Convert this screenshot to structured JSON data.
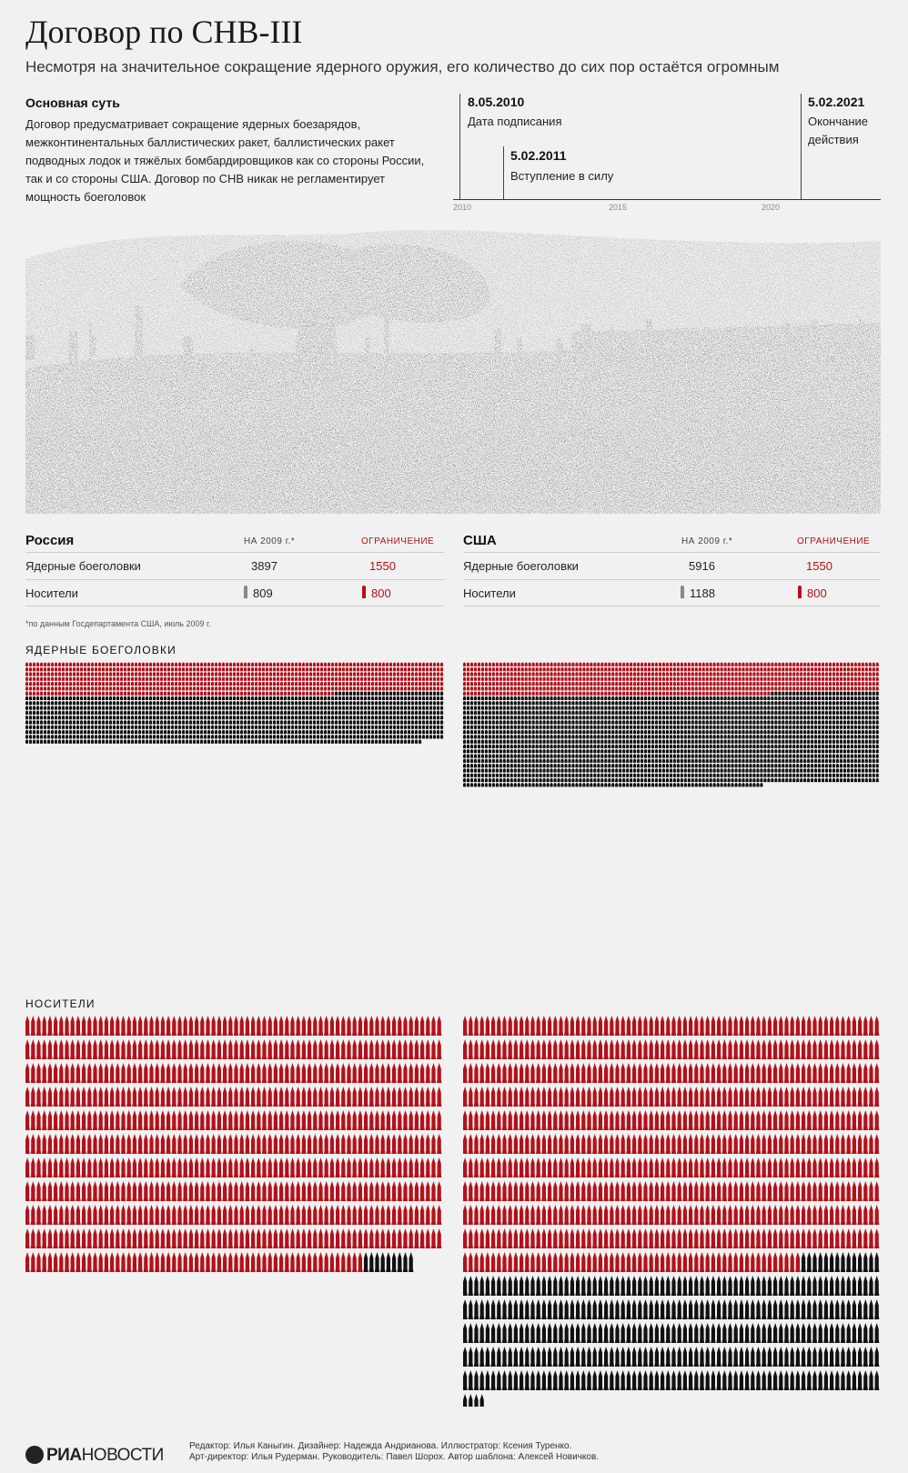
{
  "header": {
    "title": "Договор по СНВ-III",
    "subtitle": "Несмотря на значительное сокращение ядерного оружия, его количество до сих пор остаётся огромным"
  },
  "essence": {
    "title": "Основная суть",
    "text": "Договор предусматривает сокращение ядерных боезарядов, межконтинентальных баллистических ракет, баллистических ракет подводных лодок и тяжёлых бомбардировщиков как со стороны России, так и со стороны США. Договор по СНВ никак не регламентирует мощность боеголовок"
  },
  "timeline": {
    "events": [
      {
        "date": "8.05.2010",
        "label": "Дата подписания"
      },
      {
        "date": "5.02.2011",
        "label": "Вступление в силу"
      },
      {
        "date": "5.02.2021",
        "label": "Окончание действия"
      }
    ],
    "ticks": [
      "2010",
      "2015",
      "2020"
    ]
  },
  "table": {
    "col_2009": "НА 2009 г.*",
    "col_limit": "ОГРАНИЧЕНИЕ",
    "row_warheads": "Ядерные боеголовки",
    "row_carriers": "Носители",
    "russia": {
      "name": "Россия",
      "warheads": "3897",
      "warheads_limit": "1550",
      "carriers": "809",
      "carriers_limit": "800"
    },
    "usa": {
      "name": "США",
      "warheads": "5916",
      "warheads_limit": "1550",
      "carriers": "1188",
      "carriers_limit": "800"
    }
  },
  "footnote": "*по данным Госдепартамента США, июль 2009 г.",
  "sections": {
    "warheads": "ЯДЕРНЫЕ БОЕГОЛОВКИ",
    "carriers": "НОСИТЕЛИ"
  },
  "chart_data": [
    {
      "type": "bar",
      "title": "ЯДЕРНЫЕ БОЕГОЛОВКИ",
      "categories": [
        "Россия",
        "США"
      ],
      "series": [
        {
          "name": "НА 2009 г.",
          "values": [
            3897,
            5916
          ]
        },
        {
          "name": "ОГРАНИЧЕНИЕ",
          "values": [
            1550,
            1550
          ]
        }
      ]
    },
    {
      "type": "bar",
      "title": "НОСИТЕЛИ",
      "categories": [
        "Россия",
        "США"
      ],
      "series": [
        {
          "name": "НА 2009 г.",
          "values": [
            809,
            1188
          ]
        },
        {
          "name": "ОГРАНИЧЕНИЕ",
          "values": [
            800,
            800
          ]
        }
      ]
    }
  ],
  "colors": {
    "limit": "#b3111a",
    "excess": "#111111",
    "timeline": "#444444"
  },
  "credits": {
    "line1": "Редактор: Илья Каныгин. Дизайнер: Надежда Андрианова. Иллюстратор: Ксения Туренко.",
    "line2": "Арт-директор: Илья Рудерман. Руководитель: Павел Шорох. Автор шаблона: Алексей Новичков."
  },
  "logo": {
    "bold": "РИА",
    "thin": "НОВОСТИ"
  },
  "illustration": {
    "icon": "nuclear-mushroom-cloud-landscape"
  }
}
